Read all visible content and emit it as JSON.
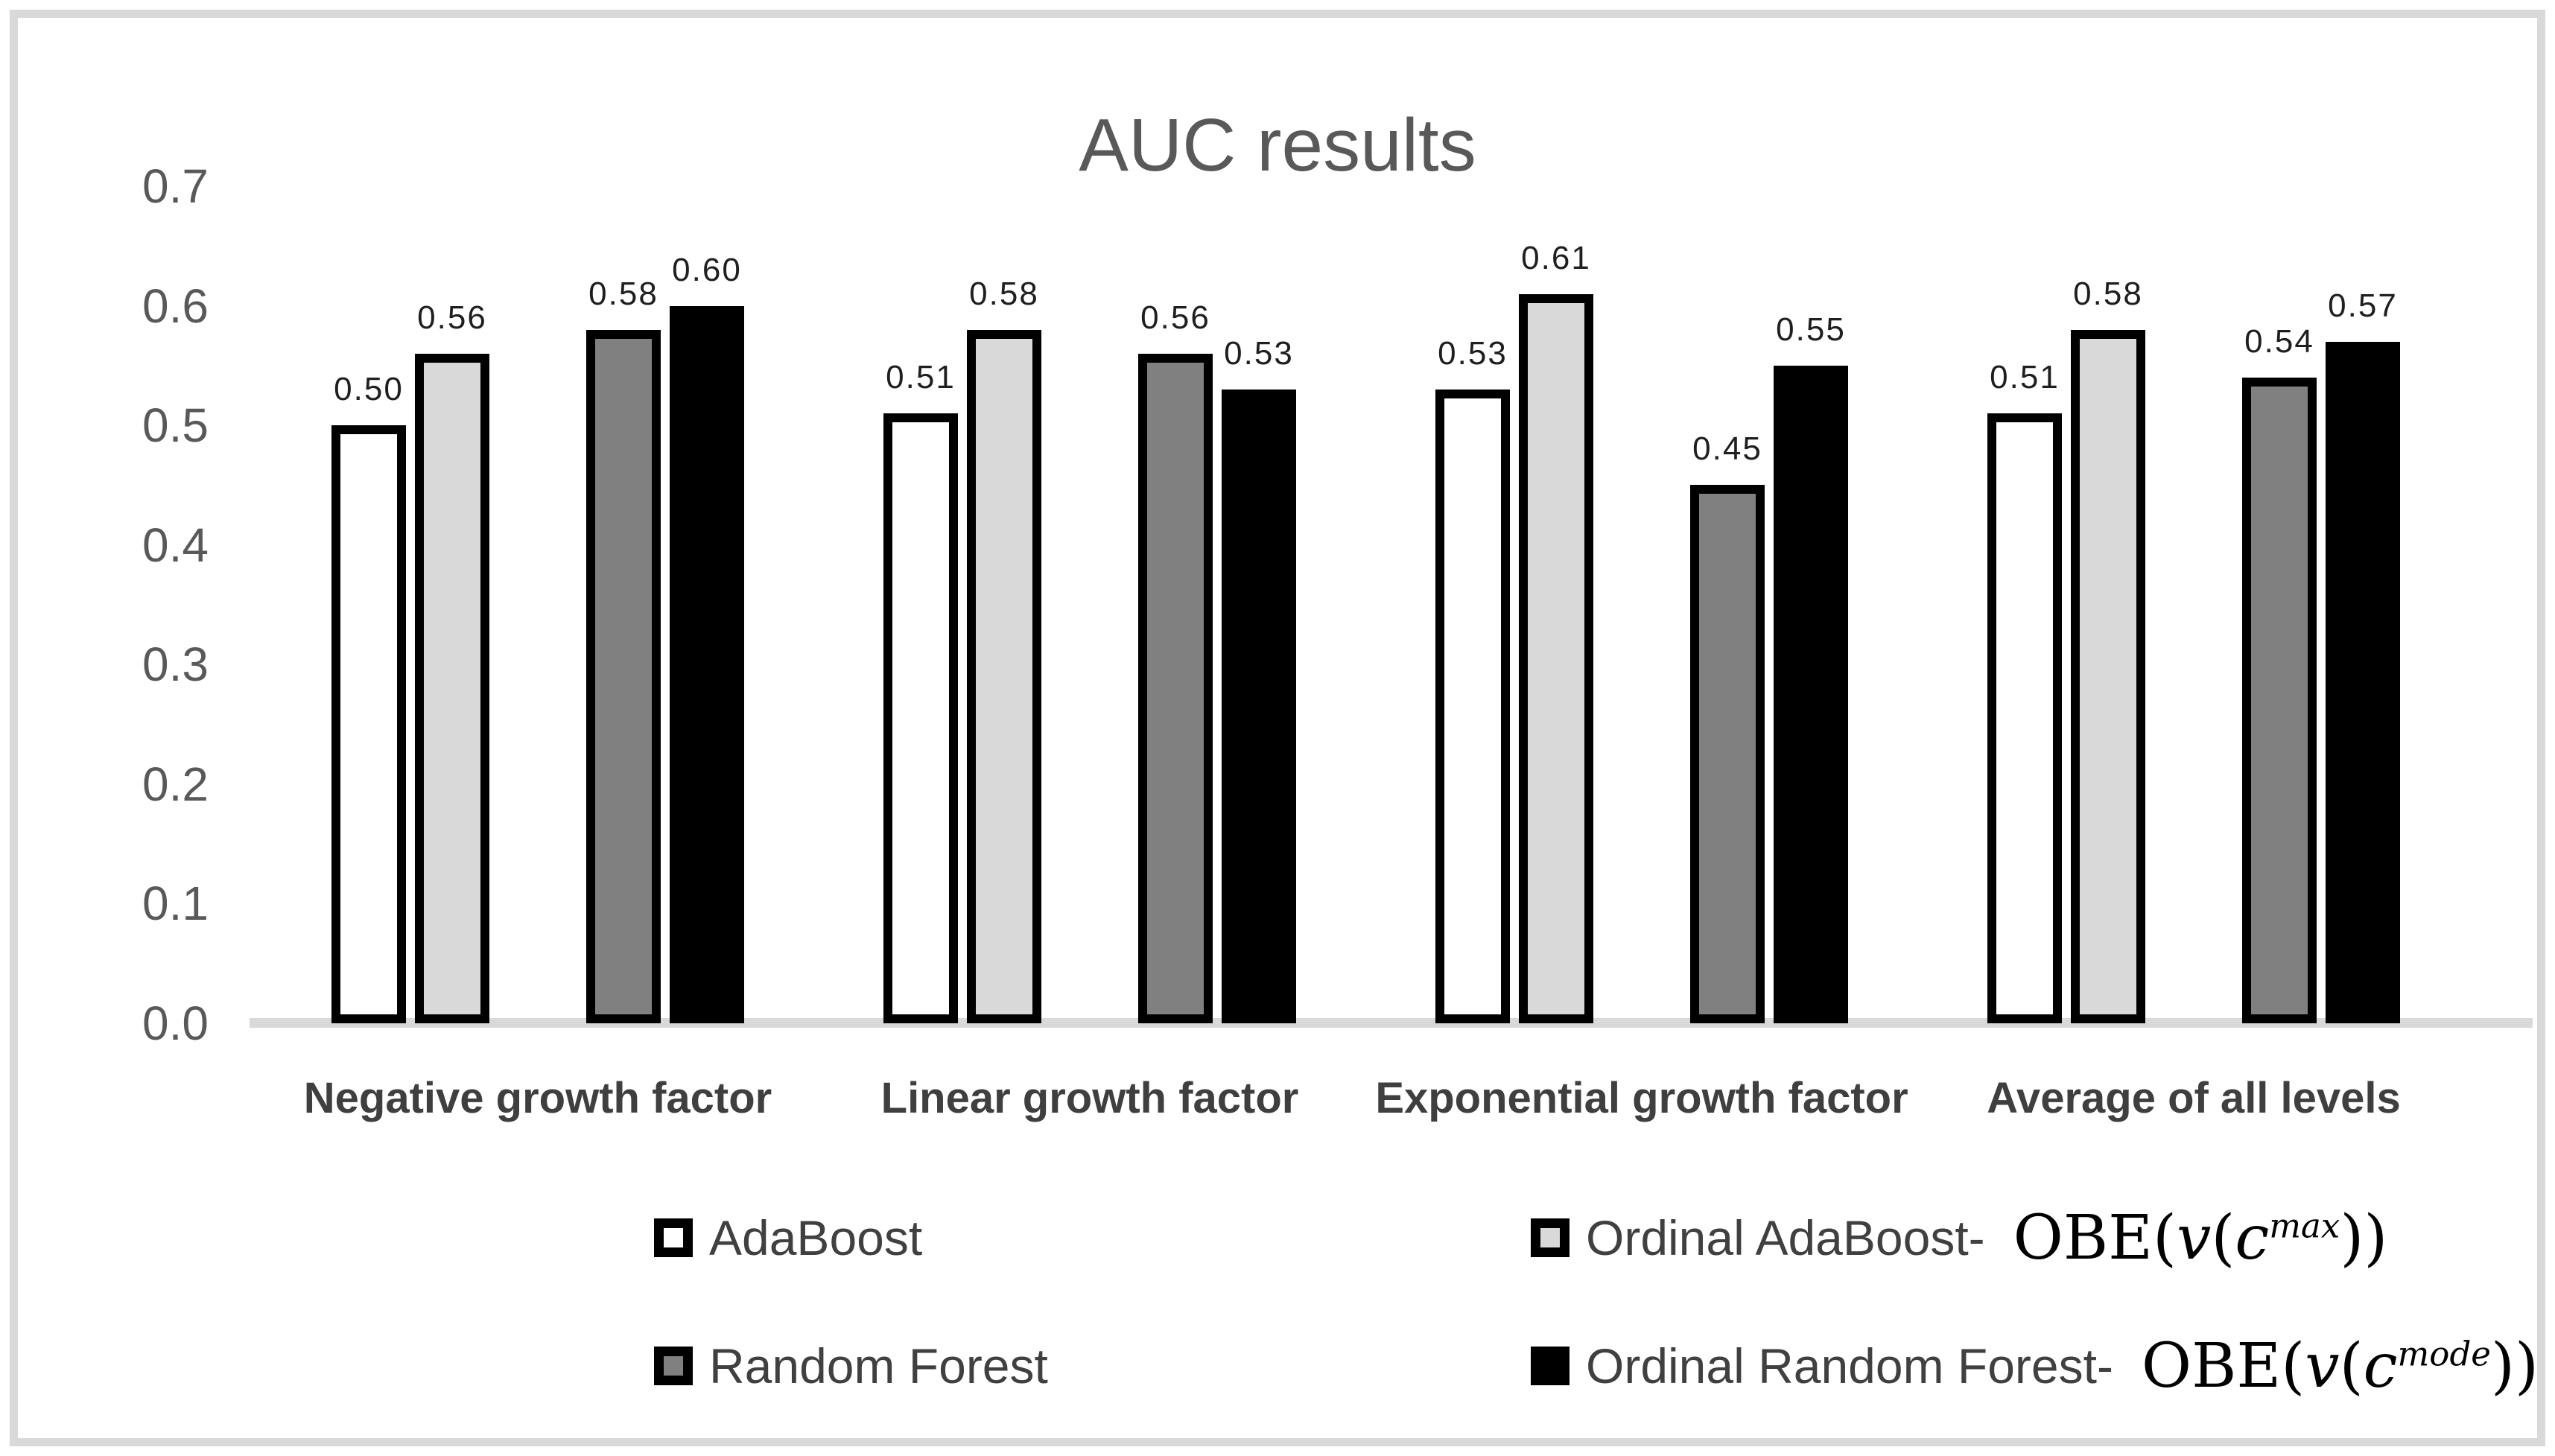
{
  "page": {
    "background": "#FFFFFF",
    "frame_border_color": "#D9D9D9",
    "title_color": "#595959",
    "axis_line_color": "#D9D9D9",
    "tick_label_color": "#595959",
    "category_label_color": "#3F3F3F",
    "value_label_color": "#1F1F1F"
  },
  "chart_data": {
    "type": "bar",
    "title": "AUC results",
    "categories": [
      "Negative growth factor",
      "Linear growth factor",
      "Exponential growth factor",
      "Average of all levels"
    ],
    "series": [
      {
        "name": "AdaBoost",
        "fill": "#FFFFFF",
        "border": "#000000",
        "values": [
          0.5,
          0.51,
          0.53,
          0.51
        ]
      },
      {
        "name": "Ordinal AdaBoost- OBE(v(c^max))",
        "fill": "#D9D9D9",
        "border": "#000000",
        "values": [
          0.56,
          0.58,
          0.61,
          0.58
        ]
      },
      {
        "name": "Random Forest",
        "fill": "#808080",
        "border": "#000000",
        "values": [
          0.58,
          0.56,
          0.45,
          0.54
        ]
      },
      {
        "name": "Ordinal Random Forest- OBE(v(c^mode))",
        "fill": "#000000",
        "border": "#000000",
        "values": [
          0.6,
          0.53,
          0.55,
          0.57
        ]
      }
    ],
    "value_labels": [
      [
        "0.50",
        "0.56",
        "0.58",
        "0.60"
      ],
      [
        "0.51",
        "0.58",
        "0.56",
        "0.53"
      ],
      [
        "0.53",
        "0.61",
        "0.45",
        "0.55"
      ],
      [
        "0.51",
        "0.58",
        "0.54",
        "0.57"
      ]
    ],
    "y_axis": {
      "min": 0.0,
      "max": 0.7,
      "tick_step": 0.1,
      "ticks": [
        "0.7",
        "0.6",
        "0.5",
        "0.4",
        "0.3",
        "0.2",
        "0.1",
        "0.0"
      ]
    },
    "grid": "off",
    "legend_position": "bottom"
  },
  "legend": {
    "items": [
      {
        "name": "AdaBoost",
        "swatch_fill": "#FFFFFF"
      },
      {
        "name": "Ordinal AdaBoost-",
        "swatch_fill": "#D9D9D9",
        "formula": {
          "func": "OBE",
          "outer_var": "v",
          "inner_var": "c",
          "superscript": "max"
        }
      },
      {
        "name": "Random Forest",
        "swatch_fill": "#808080"
      },
      {
        "name": "Ordinal Random Forest-",
        "swatch_fill": "#000000",
        "formula": {
          "func": "OBE",
          "outer_var": "v",
          "inner_var": "c",
          "superscript": "mode"
        }
      }
    ]
  }
}
